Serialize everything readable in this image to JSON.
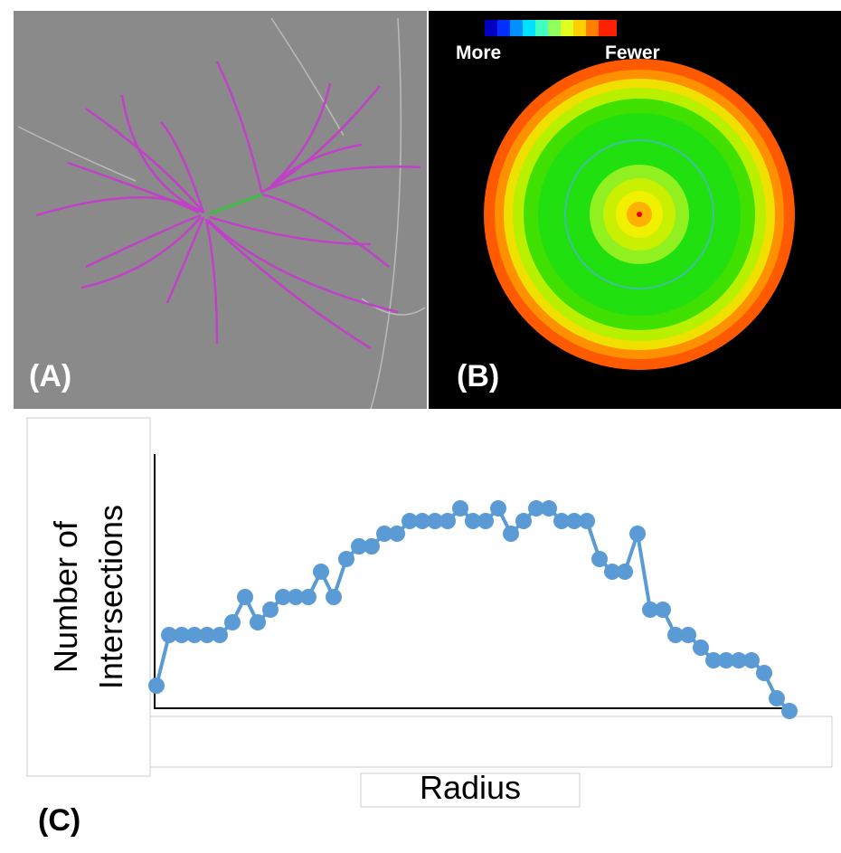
{
  "panels": {
    "a": {
      "label": "(A)"
    },
    "b": {
      "label": "(B)",
      "scale_low": "More",
      "scale_high": "Fewer"
    },
    "c": {
      "label": "(C)"
    }
  },
  "chart_data": {
    "type": "line",
    "x_label": "Radius",
    "y_label": "Number of Intersections",
    "categories": [
      null,
      null,
      null,
      null,
      null,
      null,
      null,
      null,
      null,
      null,
      null,
      null,
      null,
      null,
      null,
      null,
      null,
      null,
      null,
      null,
      null,
      null,
      null,
      null,
      null,
      null,
      null,
      null,
      null,
      null,
      null,
      null,
      null,
      null,
      null,
      null,
      null,
      null,
      null,
      null,
      null,
      null,
      null,
      null,
      null,
      null,
      null,
      null,
      null,
      null,
      null
    ],
    "values": [
      2,
      6,
      6,
      6,
      6,
      6,
      7,
      9,
      7,
      8,
      9,
      9,
      9,
      11,
      9,
      12,
      13,
      13,
      14,
      14,
      15,
      15,
      15,
      15,
      16,
      15,
      15,
      16,
      14,
      15,
      16,
      16,
      15,
      15,
      15,
      12,
      11,
      11,
      14,
      8,
      8,
      6,
      6,
      5,
      4,
      4,
      4,
      4,
      3,
      1,
      0
    ],
    "color": "#5b9bd5",
    "ylim": [
      0,
      20
    ]
  }
}
